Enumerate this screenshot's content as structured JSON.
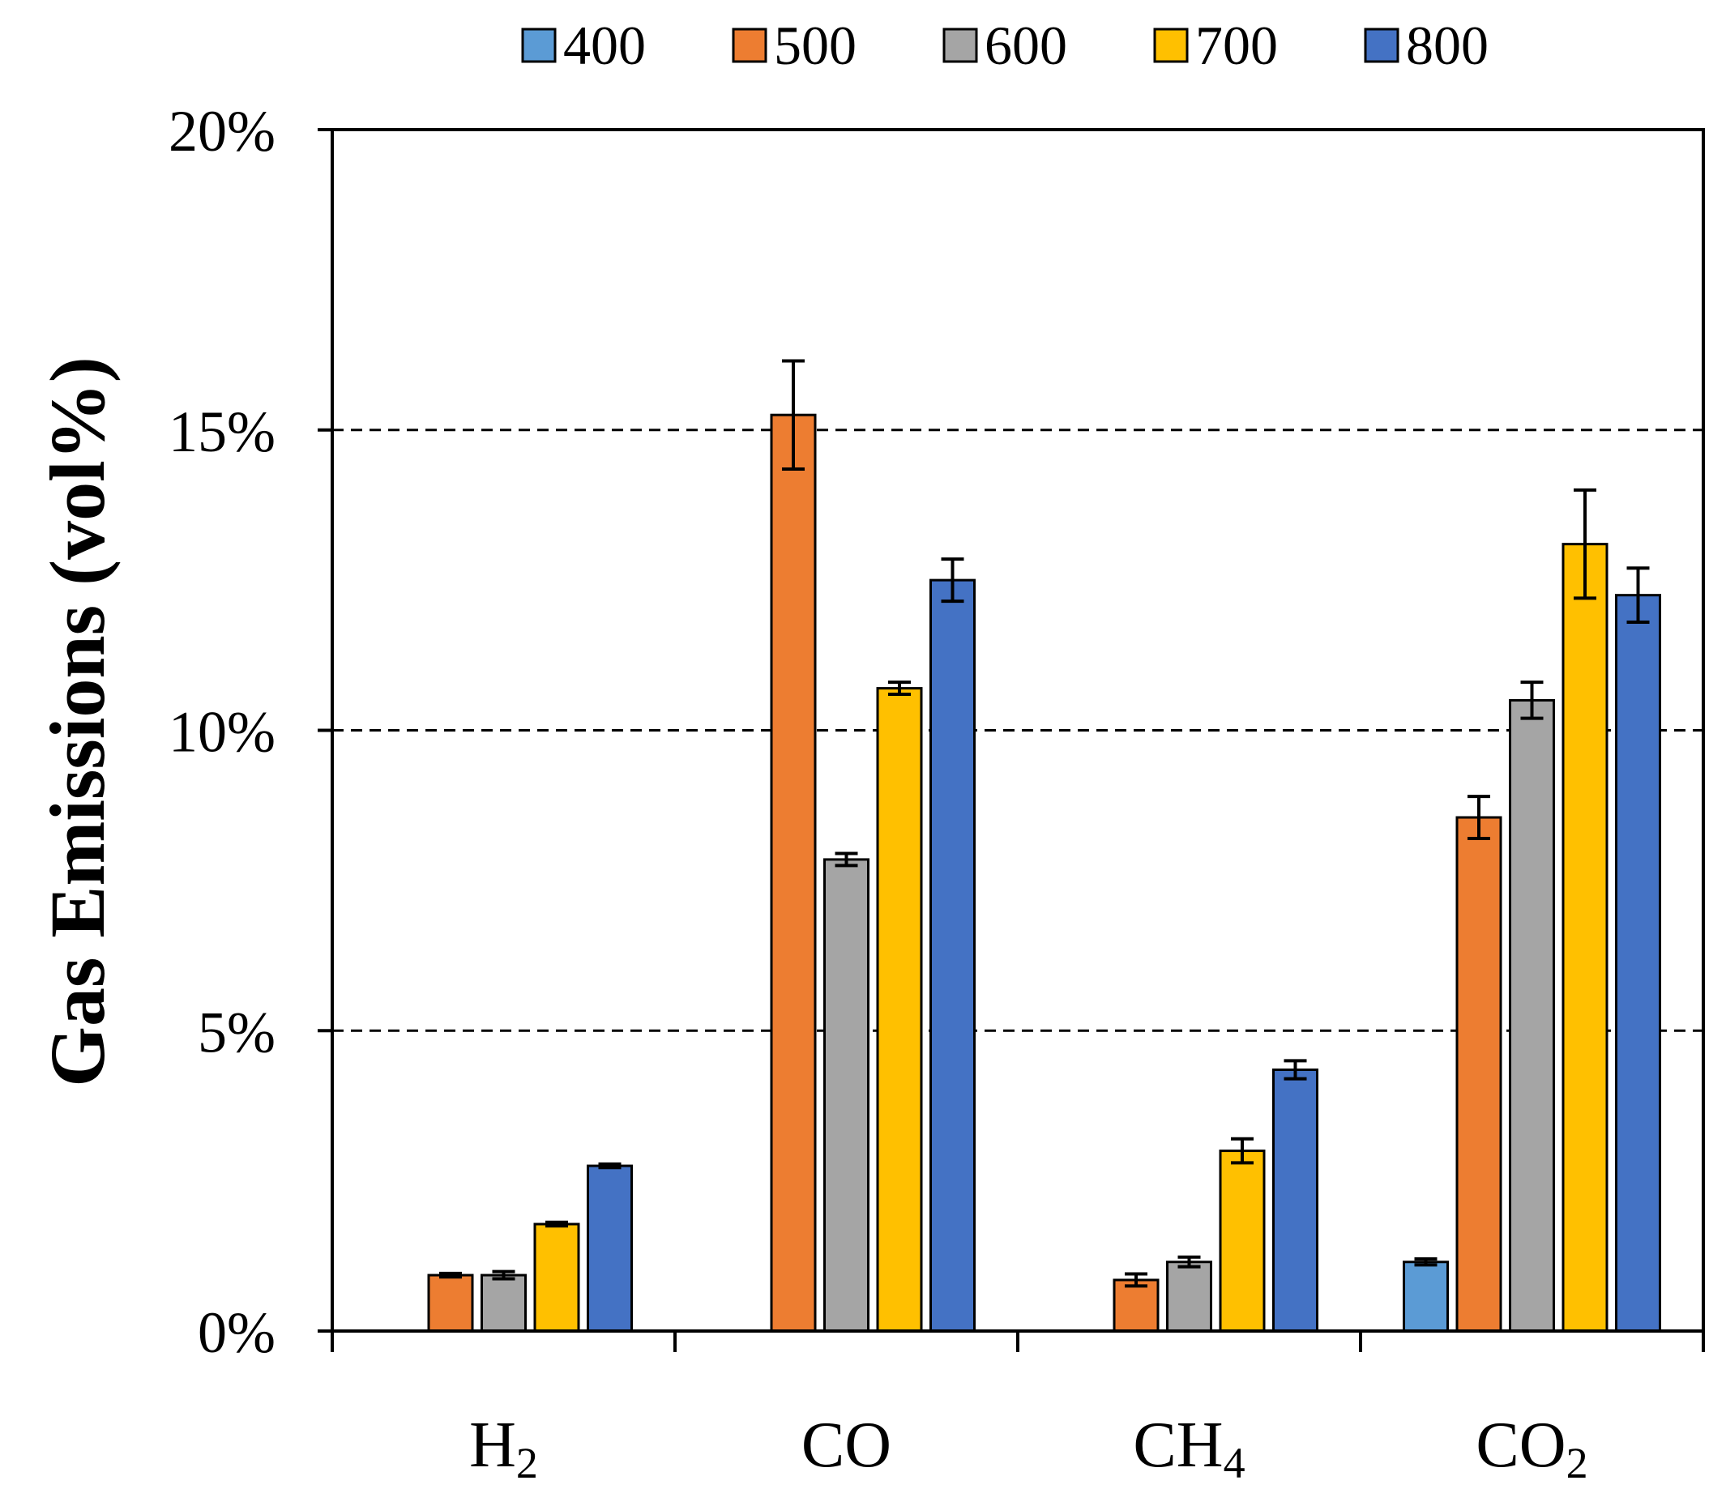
{
  "chart_data": {
    "type": "bar",
    "title": "",
    "xlabel": "",
    "ylabel": "Gas Emissions (vol%)",
    "ylim": [
      0,
      20
    ],
    "yticks": [
      "0%",
      "5%",
      "10%",
      "15%",
      "20%"
    ],
    "ytick_values": [
      0,
      5,
      10,
      15,
      20
    ],
    "grid": "dashed horizontal at 5%, 10%, 15%",
    "legend_position": "top",
    "categories": [
      {
        "base": "H",
        "sub": "2"
      },
      {
        "base": "CO",
        "sub": ""
      },
      {
        "base": "CH",
        "sub": "4"
      },
      {
        "base": "CO",
        "sub": "2"
      }
    ],
    "series": [
      {
        "name": "400",
        "color": "#5B9BD5",
        "values": [
          null,
          null,
          null,
          1.15
        ],
        "errors": [
          null,
          null,
          null,
          0.05
        ]
      },
      {
        "name": "500",
        "color": "#ED7D31",
        "values": [
          0.93,
          15.25,
          0.85,
          8.55
        ],
        "errors": [
          0.03,
          0.9,
          0.1,
          0.35
        ]
      },
      {
        "name": "600",
        "color": "#A5A5A5",
        "values": [
          0.93,
          7.85,
          1.15,
          10.5
        ],
        "errors": [
          0.06,
          0.1,
          0.08,
          0.3
        ]
      },
      {
        "name": "700",
        "color": "#FFC000",
        "values": [
          1.78,
          10.7,
          3.0,
          13.1
        ],
        "errors": [
          0.03,
          0.1,
          0.2,
          0.9
        ]
      },
      {
        "name": "800",
        "color": "#4472C4",
        "values": [
          2.75,
          12.5,
          4.35,
          12.25
        ],
        "errors": [
          0.03,
          0.35,
          0.15,
          0.45
        ]
      }
    ]
  }
}
